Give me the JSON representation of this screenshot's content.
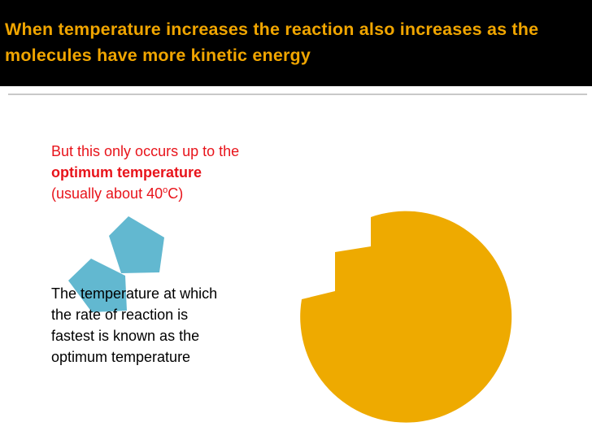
{
  "slide": {
    "title": "When temperature increases the reaction also increases as the molecules have more kinetic energy",
    "intro": {
      "line1": "But this only occurs up to the",
      "line2": "optimum temperature",
      "line3_prefix": "(usually about 40",
      "line3_sup": "o",
      "line3_suffix": "C)"
    },
    "note": {
      "line1": "The temperature at which",
      "line2": "the rate of reaction is",
      "line3": "fastest is known as the",
      "line4": "optimum temperature"
    }
  },
  "colors": {
    "title_background": "#000000",
    "title_text": "#f0a500",
    "intro_text": "#e8141b",
    "enzyme": "#eeaa00",
    "substrate": "#62b8d0"
  },
  "shapes": {
    "enzyme": "orange-enzyme-with-notched-active-site",
    "substrate_1": "blue-pentagon-substrate",
    "substrate_2": "blue-pentagon-substrate"
  }
}
